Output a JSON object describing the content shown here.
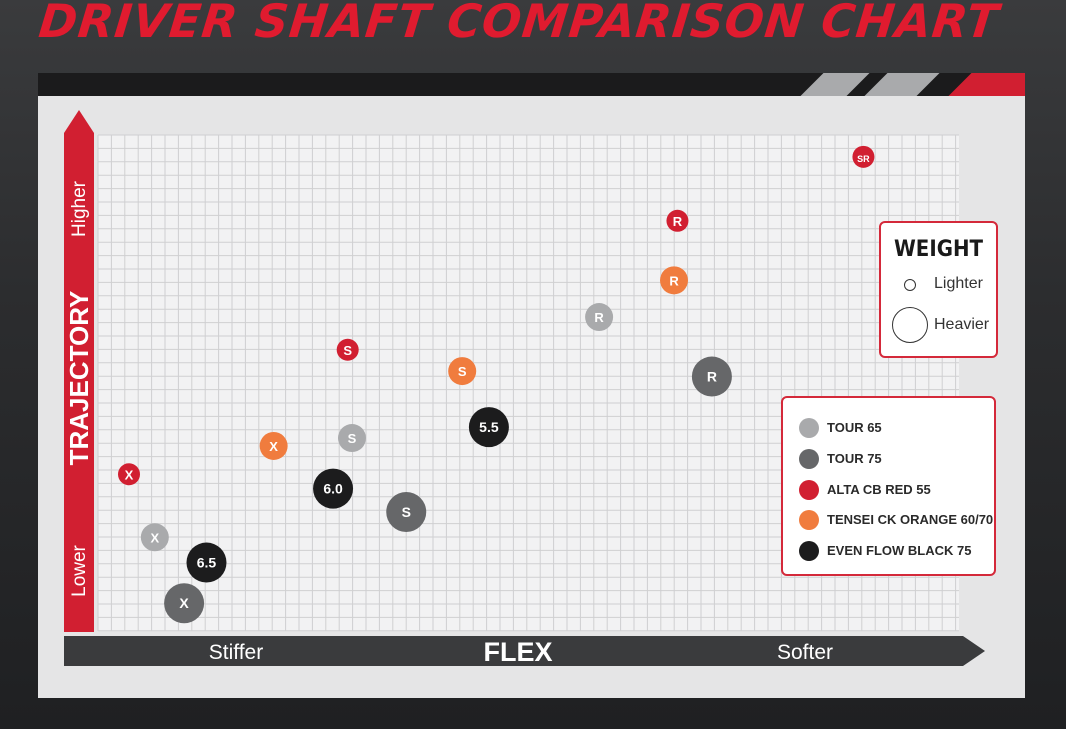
{
  "title": "DRIVER SHAFT COMPARISON CHART",
  "colors": {
    "accent": "#e01b2f",
    "tour65": "#a9aaac",
    "tour75": "#666769",
    "alta": "#d11f31",
    "tensei": "#f07c3e",
    "evenflow": "#1c1c1d",
    "panel": "#e5e5e6"
  },
  "axes": {
    "y_title": "TRAJECTORY",
    "y_low": "Lower",
    "y_high": "Higher",
    "x_title": "FLEX",
    "x_low": "Stiffer",
    "x_high": "Softer"
  },
  "weight_legend": {
    "title": "WEIGHT",
    "lighter": "Lighter",
    "heavier": "Heavier"
  },
  "legend": [
    {
      "name": "TOUR 65",
      "color": "#a9aaac"
    },
    {
      "name": "TOUR 75",
      "color": "#666769"
    },
    {
      "name": "ALTA CB RED 55",
      "color": "#d11f31"
    },
    {
      "name": "TENSEI CK ORANGE 60/70",
      "color": "#f07c3e"
    },
    {
      "name": "EVEN FLOW BLACK 75",
      "color": "#1c1c1d"
    }
  ],
  "chart_data": {
    "type": "scatter",
    "title": "DRIVER SHAFT COMPARISON CHART",
    "xlabel": "FLEX",
    "ylabel": "TRAJECTORY",
    "x_direction": "Stiffer to Softer",
    "y_direction": "Lower to Higher",
    "grid": true,
    "xlim": [
      0,
      100
    ],
    "ylim": [
      0,
      100
    ],
    "bubble_size": "WEIGHT (Lighter to Heavier)",
    "series": [
      {
        "name": "TOUR 65",
        "color": "#a9aaac",
        "points": [
          {
            "label": "X",
            "x": 6.6,
            "y": 18.9,
            "weight": 0.3
          },
          {
            "label": "S",
            "x": 29.5,
            "y": 38.9,
            "weight": 0.3
          },
          {
            "label": "R",
            "x": 58.2,
            "y": 63.3,
            "weight": 0.3
          }
        ]
      },
      {
        "name": "TOUR 75",
        "color": "#666769",
        "points": [
          {
            "label": "X",
            "x": 10.0,
            "y": 5.6,
            "weight": 0.9
          },
          {
            "label": "S",
            "x": 35.8,
            "y": 24.0,
            "weight": 0.9
          },
          {
            "label": "R",
            "x": 71.3,
            "y": 51.3,
            "weight": 0.9
          }
        ]
      },
      {
        "name": "ALTA CB RED 55",
        "color": "#d11f31",
        "points": [
          {
            "label": "X",
            "x": 3.6,
            "y": 31.6,
            "weight": 0.0
          },
          {
            "label": "S",
            "x": 29.0,
            "y": 56.7,
            "weight": 0.0
          },
          {
            "label": "R",
            "x": 67.3,
            "y": 82.7,
            "weight": 0.0
          },
          {
            "label": "SR",
            "x": 88.9,
            "y": 95.6,
            "weight": 0.0
          }
        ]
      },
      {
        "name": "TENSEI CK ORANGE 60/70",
        "color": "#f07c3e",
        "points": [
          {
            "label": "X",
            "x": 20.4,
            "y": 37.3,
            "weight": 0.3
          },
          {
            "label": "S",
            "x": 42.3,
            "y": 52.4,
            "weight": 0.3
          },
          {
            "label": "R",
            "x": 66.9,
            "y": 70.7,
            "weight": 0.3
          }
        ]
      },
      {
        "name": "EVEN FLOW BLACK 75",
        "color": "#1c1c1d",
        "points": [
          {
            "label": "6.5",
            "x": 12.6,
            "y": 13.8,
            "weight": 0.9
          },
          {
            "label": "6.0",
            "x": 27.3,
            "y": 28.7,
            "weight": 0.9
          },
          {
            "label": "5.5",
            "x": 45.4,
            "y": 41.1,
            "weight": 0.9
          }
        ]
      }
    ]
  }
}
